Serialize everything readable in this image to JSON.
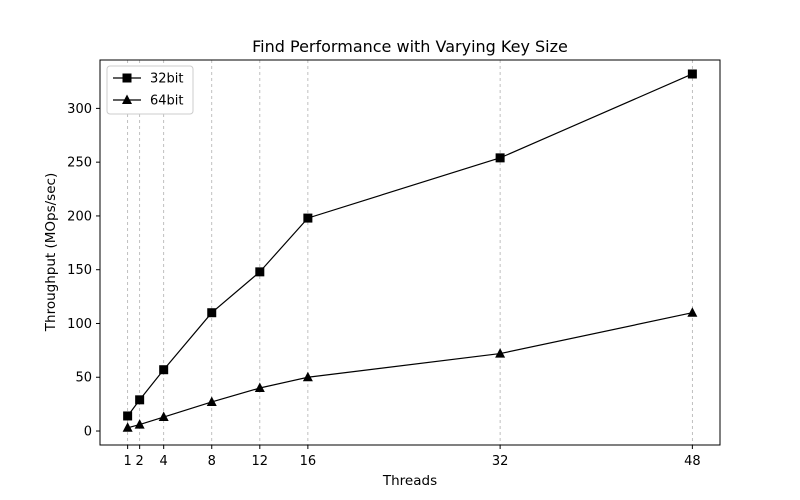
{
  "chart_data": {
    "type": "line",
    "title": "Find Performance with Varying Key Size",
    "xlabel": "Threads",
    "ylabel": "Throughput (MOps/sec)",
    "x": [
      1,
      2,
      4,
      8,
      12,
      16,
      32,
      48
    ],
    "xticks": [
      1,
      2,
      4,
      8,
      12,
      16,
      32,
      48
    ],
    "yticks": [
      0,
      50,
      100,
      150,
      200,
      250,
      300
    ],
    "xlim": [
      -1.3,
      50.3
    ],
    "ylim": [
      -13,
      345
    ],
    "grid": "vertical dashed at x ticks",
    "legend_position": "upper-left",
    "series": [
      {
        "name": "32bit",
        "marker": "square",
        "color": "#000000",
        "values": [
          14,
          29,
          57,
          110,
          148,
          198,
          254,
          332
        ]
      },
      {
        "name": "64bit",
        "marker": "triangle",
        "color": "#000000",
        "values": [
          3,
          6,
          13,
          27,
          40,
          50,
          72,
          110
        ]
      }
    ]
  }
}
